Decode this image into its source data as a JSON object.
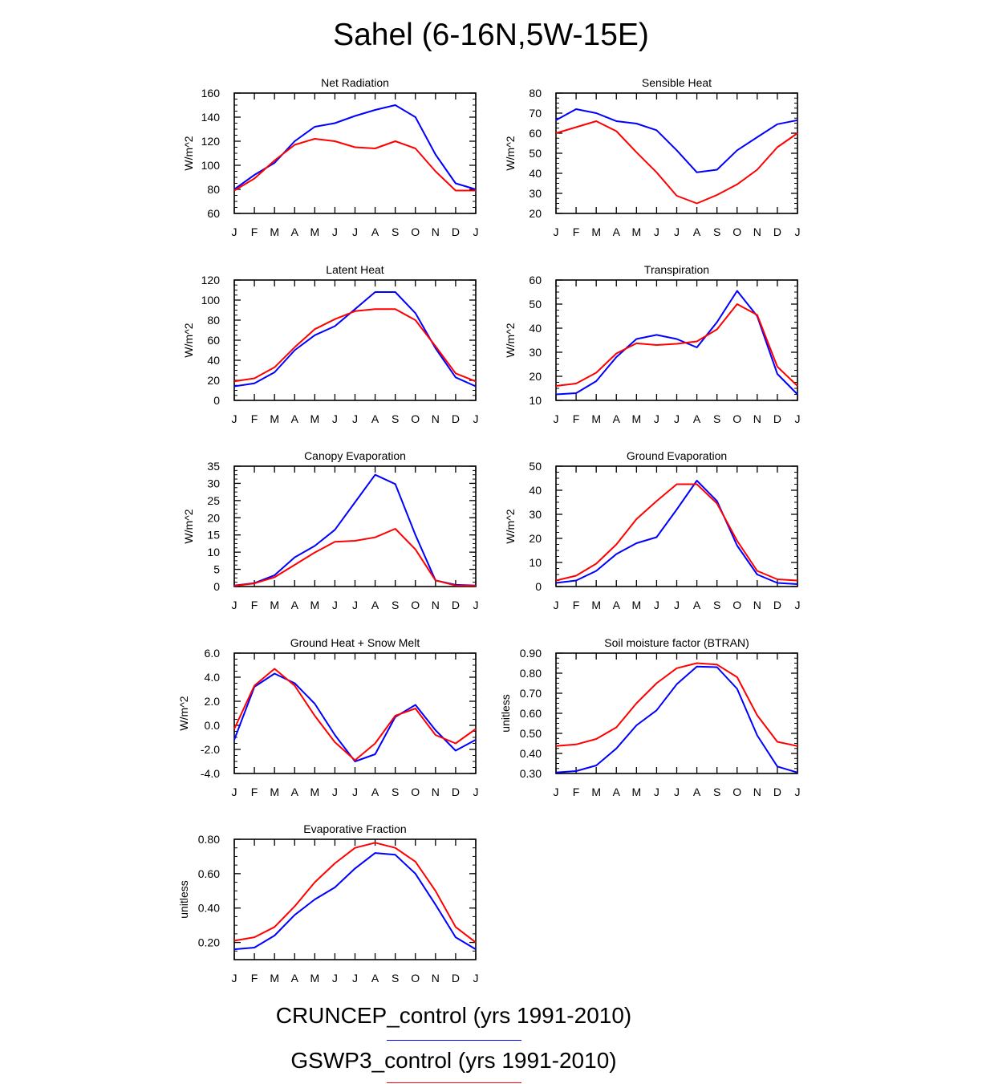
{
  "page_title": "Sahel (6-16N,5W-15E)",
  "colors": {
    "series_1": "#0000ff",
    "series_2": "#ff0000",
    "axis": "#000000"
  },
  "legend": [
    {
      "label": "CRUNCEP_control (yrs 1991-2010)",
      "color": "#0000ff"
    },
    {
      "label": "GSWP3_control (yrs 1991-2010)",
      "color": "#ff0000"
    }
  ],
  "chart_data": [
    {
      "type": "line",
      "title": "Net Radiation",
      "xlabel": "",
      "ylabel": "W/m^2",
      "categories": [
        "J",
        "F",
        "M",
        "A",
        "M",
        "J",
        "J",
        "A",
        "S",
        "O",
        "N",
        "D",
        "J"
      ],
      "ylim": [
        60,
        160
      ],
      "yticks": [
        60,
        80,
        100,
        120,
        140,
        160
      ],
      "tick_decimals": 0,
      "grid": false,
      "series": [
        {
          "name": "CRUNCEP_control (yrs 1991-2010)",
          "color": "#0000ff",
          "values": [
            80,
            92,
            102,
            120,
            132,
            135,
            141,
            146,
            150,
            140,
            109,
            85,
            80
          ]
        },
        {
          "name": "GSWP3_control (yrs 1991-2010)",
          "color": "#ff0000",
          "values": [
            79,
            89,
            104,
            117,
            122,
            120,
            115,
            114,
            120,
            114,
            95,
            79,
            79
          ]
        }
      ]
    },
    {
      "type": "line",
      "title": "Sensible Heat",
      "xlabel": "",
      "ylabel": "W/m^2",
      "categories": [
        "J",
        "F",
        "M",
        "A",
        "M",
        "J",
        "J",
        "A",
        "S",
        "O",
        "N",
        "D",
        "J"
      ],
      "ylim": [
        20,
        80
      ],
      "yticks": [
        20,
        30,
        40,
        50,
        60,
        70,
        80
      ],
      "tick_decimals": 0,
      "grid": false,
      "series": [
        {
          "name": "CRUNCEP_control (yrs 1991-2010)",
          "color": "#0000ff",
          "values": [
            66.5,
            72,
            70,
            66,
            64.8,
            61.5,
            51.5,
            40.5,
            41.8,
            51.5,
            58,
            64.5,
            66.5
          ]
        },
        {
          "name": "GSWP3_control (yrs 1991-2010)",
          "color": "#ff0000",
          "values": [
            60,
            63,
            66,
            61,
            50.5,
            40.5,
            28.8,
            25,
            29.2,
            34.5,
            41.8,
            53,
            60
          ]
        }
      ]
    },
    {
      "type": "line",
      "title": "Latent Heat",
      "xlabel": "",
      "ylabel": "W/m^2",
      "categories": [
        "J",
        "F",
        "M",
        "A",
        "M",
        "J",
        "J",
        "A",
        "S",
        "O",
        "N",
        "D",
        "J"
      ],
      "ylim": [
        0,
        120
      ],
      "yticks": [
        0,
        20,
        40,
        60,
        80,
        100,
        120
      ],
      "tick_decimals": 0,
      "grid": false,
      "series": [
        {
          "name": "CRUNCEP_control (yrs 1991-2010)",
          "color": "#0000ff",
          "values": [
            14,
            17,
            28,
            50,
            65,
            74,
            91,
            108,
            108,
            87,
            52,
            23,
            14
          ]
        },
        {
          "name": "GSWP3_control (yrs 1991-2010)",
          "color": "#ff0000",
          "values": [
            19,
            22,
            33,
            53,
            71,
            81,
            89,
            91,
            91,
            80,
            54,
            27,
            19
          ]
        }
      ]
    },
    {
      "type": "line",
      "title": "Transpiration",
      "xlabel": "",
      "ylabel": "W/m^2",
      "categories": [
        "J",
        "F",
        "M",
        "A",
        "M",
        "J",
        "J",
        "A",
        "S",
        "O",
        "N",
        "D",
        "J"
      ],
      "ylim": [
        10,
        60
      ],
      "yticks": [
        10,
        20,
        30,
        40,
        50,
        60
      ],
      "tick_decimals": 0,
      "grid": false,
      "series": [
        {
          "name": "CRUNCEP_control (yrs 1991-2010)",
          "color": "#0000ff",
          "values": [
            12.5,
            13,
            18,
            28,
            35.5,
            37.2,
            35.5,
            32,
            42.5,
            55.5,
            45,
            21,
            12.5
          ]
        },
        {
          "name": "GSWP3_control (yrs 1991-2010)",
          "color": "#ff0000",
          "values": [
            16,
            17,
            21.5,
            29.5,
            33.7,
            33,
            33.5,
            34.5,
            39.5,
            50,
            45.5,
            24,
            16
          ]
        }
      ]
    },
    {
      "type": "line",
      "title": "Canopy Evaporation",
      "xlabel": "",
      "ylabel": "W/m^2",
      "categories": [
        "J",
        "F",
        "M",
        "A",
        "M",
        "J",
        "J",
        "A",
        "S",
        "O",
        "N",
        "D",
        "J"
      ],
      "ylim": [
        0,
        35
      ],
      "yticks": [
        0,
        5,
        10,
        15,
        20,
        25,
        30,
        35
      ],
      "tick_decimals": 0,
      "grid": false,
      "series": [
        {
          "name": "CRUNCEP_control (yrs 1991-2010)",
          "color": "#0000ff",
          "values": [
            0.3,
            1,
            3.3,
            8.5,
            11.8,
            16.5,
            24.5,
            32.5,
            29.8,
            15,
            1.8,
            0.5,
            0.3
          ]
        },
        {
          "name": "GSWP3_control (yrs 1991-2010)",
          "color": "#ff0000",
          "values": [
            0.2,
            0.9,
            2.7,
            6.3,
            9.9,
            13,
            13.3,
            14.3,
            16.8,
            10.8,
            1.8,
            0.3,
            0.2
          ]
        }
      ]
    },
    {
      "type": "line",
      "title": "Ground Evaporation",
      "xlabel": "",
      "ylabel": "W/m^2",
      "categories": [
        "J",
        "F",
        "M",
        "A",
        "M",
        "J",
        "J",
        "A",
        "S",
        "O",
        "N",
        "D",
        "J"
      ],
      "ylim": [
        0,
        50
      ],
      "yticks": [
        0,
        10,
        20,
        30,
        40,
        50
      ],
      "tick_decimals": 0,
      "grid": false,
      "series": [
        {
          "name": "CRUNCEP_control (yrs 1991-2010)",
          "color": "#0000ff",
          "values": [
            1.5,
            2.5,
            6.5,
            13.5,
            18,
            20.5,
            32,
            44,
            35.5,
            17,
            5,
            1.5,
            1
          ]
        },
        {
          "name": "GSWP3_control (yrs 1991-2010)",
          "color": "#ff0000",
          "values": [
            2.5,
            4.5,
            9.5,
            17.5,
            28,
            35.5,
            42.5,
            42.5,
            34.5,
            19,
            6.5,
            3,
            2.5
          ]
        }
      ]
    },
    {
      "type": "line",
      "title": "Ground Heat + Snow Melt",
      "xlabel": "",
      "ylabel": "W/m^2",
      "categories": [
        "J",
        "F",
        "M",
        "A",
        "M",
        "J",
        "J",
        "A",
        "S",
        "O",
        "N",
        "D",
        "J"
      ],
      "ylim": [
        -4,
        6
      ],
      "yticks": [
        -4,
        -2,
        0,
        2,
        4,
        6
      ],
      "tick_decimals": 1,
      "grid": false,
      "series": [
        {
          "name": "CRUNCEP_control (yrs 1991-2010)",
          "color": "#0000ff",
          "values": [
            -1.2,
            3.2,
            4.3,
            3.5,
            1.8,
            -0.8,
            -3,
            -2.4,
            0.7,
            1.7,
            -0.4,
            -2.1,
            -1.2
          ]
        },
        {
          "name": "GSWP3_control (yrs 1991-2010)",
          "color": "#ff0000",
          "values": [
            -0.3,
            3.3,
            4.7,
            3.3,
            0.8,
            -1.4,
            -2.9,
            -1.5,
            0.8,
            1.4,
            -0.8,
            -1.5,
            -0.3
          ]
        }
      ]
    },
    {
      "type": "line",
      "title": "Soil moisture factor (BTRAN)",
      "xlabel": "",
      "ylabel": "unitless",
      "categories": [
        "J",
        "F",
        "M",
        "A",
        "M",
        "J",
        "J",
        "A",
        "S",
        "O",
        "N",
        "D",
        "J"
      ],
      "ylim": [
        0.3,
        0.9
      ],
      "yticks": [
        0.3,
        0.4,
        0.5,
        0.6,
        0.7,
        0.8,
        0.9
      ],
      "tick_decimals": 2,
      "grid": false,
      "series": [
        {
          "name": "CRUNCEP_control (yrs 1991-2010)",
          "color": "#0000ff",
          "values": [
            0.305,
            0.312,
            0.34,
            0.425,
            0.54,
            0.615,
            0.745,
            0.833,
            0.83,
            0.722,
            0.49,
            0.335,
            0.305
          ]
        },
        {
          "name": "GSWP3_control (yrs 1991-2010)",
          "color": "#ff0000",
          "values": [
            0.437,
            0.445,
            0.472,
            0.53,
            0.65,
            0.75,
            0.825,
            0.85,
            0.843,
            0.78,
            0.59,
            0.458,
            0.437
          ]
        }
      ]
    },
    {
      "type": "line",
      "title": "Evaporative Fraction",
      "xlabel": "",
      "ylabel": "unitless",
      "categories": [
        "J",
        "F",
        "M",
        "A",
        "M",
        "J",
        "J",
        "A",
        "S",
        "O",
        "N",
        "D",
        "J"
      ],
      "ylim": [
        0.1,
        0.8
      ],
      "yticks": [
        0.2,
        0.4,
        0.6,
        0.8
      ],
      "tick_decimals": 2,
      "grid": false,
      "series": [
        {
          "name": "CRUNCEP_control (yrs 1991-2010)",
          "color": "#0000ff",
          "values": [
            0.16,
            0.17,
            0.24,
            0.36,
            0.45,
            0.52,
            0.63,
            0.72,
            0.71,
            0.6,
            0.42,
            0.23,
            0.16
          ]
        },
        {
          "name": "GSWP3_control (yrs 1991-2010)",
          "color": "#ff0000",
          "values": [
            0.21,
            0.23,
            0.29,
            0.41,
            0.55,
            0.66,
            0.75,
            0.78,
            0.75,
            0.67,
            0.5,
            0.29,
            0.2
          ]
        }
      ]
    }
  ]
}
